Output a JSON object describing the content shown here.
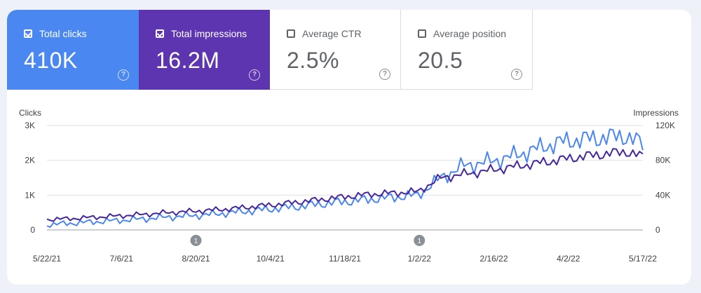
{
  "metrics": [
    {
      "label": "Total clicks",
      "value": "410K",
      "checked": true,
      "color": "#4a87f1"
    },
    {
      "label": "Total impressions",
      "value": "16.2M",
      "checked": true,
      "color": "#5e35b1"
    },
    {
      "label": "Average CTR",
      "value": "2.5%",
      "checked": false,
      "color": "#ffffff"
    },
    {
      "label": "Average position",
      "value": "20.5",
      "checked": false,
      "color": "#ffffff"
    }
  ],
  "help_symbol": "?",
  "chart_data": {
    "type": "line",
    "title": "",
    "left_axis": {
      "label": "Clicks",
      "ticks": [
        "0",
        "1K",
        "2K",
        "3K"
      ],
      "range": [
        0,
        3000
      ]
    },
    "right_axis": {
      "label": "Impressions",
      "ticks": [
        "0",
        "40K",
        "80K",
        "120K"
      ],
      "range": [
        0,
        120000
      ]
    },
    "x_tick_labels": [
      "5/22/21",
      "7/6/21",
      "8/20/21",
      "10/4/21",
      "11/18/21",
      "1/2/22",
      "2/16/22",
      "4/2/22",
      "5/17/22"
    ],
    "x_range": [
      "2021-05-22",
      "2022-05-17"
    ],
    "annotations": [
      {
        "label": "1",
        "date": "2021-08-20"
      },
      {
        "label": "1",
        "date": "2022-01-02"
      }
    ],
    "grid": true,
    "series": [
      {
        "name": "Clicks",
        "axis": "left",
        "color": "#4a87f1",
        "dates": [
          "2021-05-22",
          "2021-06-05",
          "2021-06-19",
          "2021-07-03",
          "2021-07-17",
          "2021-07-31",
          "2021-08-14",
          "2021-08-28",
          "2021-09-11",
          "2021-09-25",
          "2021-10-09",
          "2021-10-23",
          "2021-11-06",
          "2021-11-20",
          "2021-12-04",
          "2021-12-18",
          "2022-01-01",
          "2022-01-15",
          "2022-01-29",
          "2022-02-12",
          "2022-02-26",
          "2022-03-12",
          "2022-03-26",
          "2022-04-09",
          "2022-04-23",
          "2022-05-07",
          "2022-05-17"
        ],
        "values": [
          150,
          190,
          230,
          270,
          310,
          360,
          400,
          440,
          500,
          560,
          620,
          680,
          760,
          820,
          880,
          940,
          1000,
          1500,
          1850,
          1950,
          2100,
          2300,
          2500,
          2600,
          2650,
          2700,
          2450
        ]
      },
      {
        "name": "Impressions",
        "axis": "right",
        "color": "#4527a0",
        "dates": [
          "2021-05-22",
          "2021-06-05",
          "2021-06-19",
          "2021-07-03",
          "2021-07-17",
          "2021-07-31",
          "2021-08-14",
          "2021-08-28",
          "2021-09-11",
          "2021-09-25",
          "2021-10-09",
          "2021-10-23",
          "2021-11-06",
          "2021-11-20",
          "2021-12-04",
          "2021-12-18",
          "2022-01-01",
          "2022-01-15",
          "2022-01-29",
          "2022-02-12",
          "2022-02-26",
          "2022-03-12",
          "2022-03-26",
          "2022-04-09",
          "2022-04-23",
          "2022-05-07",
          "2022-05-17"
        ],
        "values": [
          12000,
          13000,
          14500,
          16000,
          17500,
          19500,
          21000,
          22500,
          24500,
          27000,
          29500,
          32500,
          35500,
          38500,
          41000,
          42500,
          44000,
          60000,
          64000,
          68000,
          72000,
          76000,
          80000,
          84000,
          87000,
          90000,
          84000
        ]
      }
    ]
  }
}
